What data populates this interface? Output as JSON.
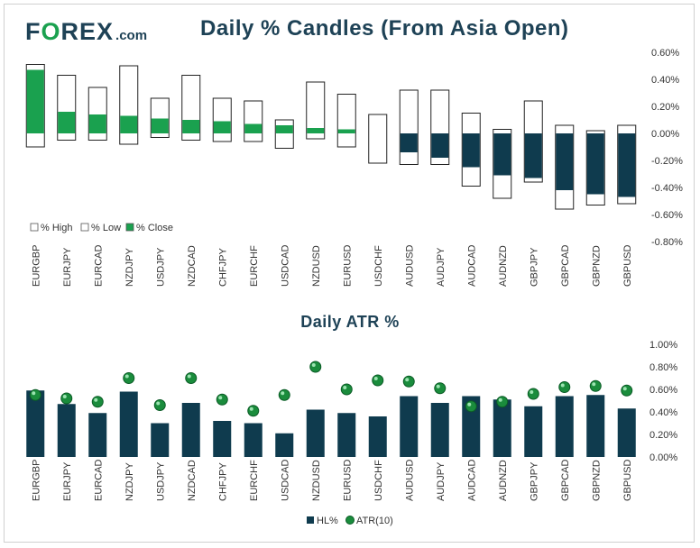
{
  "logo": {
    "text_pre": "F",
    "text_o": "O",
    "text_post": "REX",
    "suffix": ".com"
  },
  "colors": {
    "close_green": "#1aa14f",
    "navy": "#0f3b4e",
    "title": "#1e4256",
    "atr_dot": "#1a8c3c"
  },
  "chart_data": [
    {
      "type": "bar",
      "title": "Daily % Candles (From Asia Open)",
      "categories": [
        "EURGBP",
        "EURJPY",
        "EURCAD",
        "NZDJPY",
        "USDJPY",
        "NZDCAD",
        "CHFJPY",
        "EURCHF",
        "USDCAD",
        "NZDUSD",
        "EURUSD",
        "USDCHF",
        "AUDUSD",
        "AUDJPY",
        "AUDCAD",
        "AUDNZD",
        "GBPJPY",
        "GBPCAD",
        "GBPNZD",
        "GBPUSD"
      ],
      "series": [
        {
          "name": "% High",
          "values": [
            0.51,
            0.43,
            0.34,
            0.5,
            0.26,
            0.43,
            0.26,
            0.24,
            0.1,
            0.38,
            0.29,
            0.14,
            0.32,
            0.32,
            0.15,
            0.03,
            0.24,
            0.06,
            0.02,
            0.06
          ]
        },
        {
          "name": "% Low",
          "values": [
            -0.1,
            -0.05,
            -0.05,
            -0.08,
            -0.03,
            -0.05,
            -0.06,
            -0.06,
            -0.11,
            -0.04,
            -0.1,
            -0.22,
            -0.23,
            -0.23,
            -0.39,
            -0.48,
            -0.36,
            -0.56,
            -0.53,
            -0.52
          ]
        },
        {
          "name": "% Close",
          "values": [
            0.47,
            0.16,
            0.14,
            0.13,
            0.11,
            0.1,
            0.09,
            0.07,
            0.06,
            0.04,
            0.03,
            0.0,
            -0.14,
            -0.18,
            -0.25,
            -0.31,
            -0.33,
            -0.42,
            -0.45,
            -0.47
          ]
        }
      ],
      "yticks": [
        "0.60%",
        "0.40%",
        "0.20%",
        "0.00%",
        "-0.20%",
        "-0.40%",
        "-0.60%",
        "-0.80%"
      ],
      "ylim": [
        -0.8,
        0.6
      ],
      "legend": [
        "% High",
        "% Low",
        "% Close"
      ]
    },
    {
      "type": "bar",
      "title": "Daily ATR %",
      "categories": [
        "EURGBP",
        "EURJPY",
        "EURCAD",
        "NZDJPY",
        "USDJPY",
        "NZDCAD",
        "CHFJPY",
        "EURCHF",
        "USDCAD",
        "NZDUSD",
        "EURUSD",
        "USDCHF",
        "AUDUSD",
        "AUDJPY",
        "AUDCAD",
        "AUDNZD",
        "GBPJPY",
        "GBPCAD",
        "GBPNZD",
        "GBPUSD"
      ],
      "series": [
        {
          "name": "HL%",
          "values": [
            0.59,
            0.47,
            0.39,
            0.58,
            0.3,
            0.48,
            0.32,
            0.3,
            0.21,
            0.42,
            0.39,
            0.36,
            0.54,
            0.48,
            0.54,
            0.51,
            0.45,
            0.54,
            0.55,
            0.43
          ]
        },
        {
          "name": "ATR(10)",
          "values": [
            0.55,
            0.52,
            0.49,
            0.7,
            0.46,
            0.7,
            0.51,
            0.41,
            0.55,
            0.8,
            0.6,
            0.68,
            0.67,
            0.61,
            0.45,
            0.49,
            0.56,
            0.62,
            0.63,
            0.59
          ]
        }
      ],
      "yticks": [
        "1.00%",
        "0.80%",
        "0.60%",
        "0.40%",
        "0.20%",
        "0.00%"
      ],
      "ylim": [
        0,
        1.0
      ],
      "legend": [
        "HL%",
        "ATR(10)"
      ]
    }
  ]
}
